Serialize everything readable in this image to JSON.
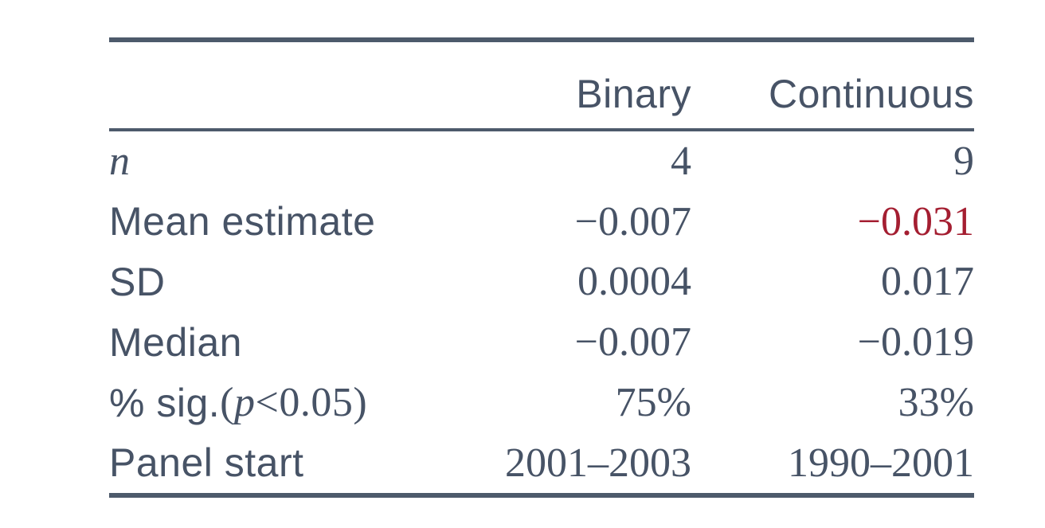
{
  "colors": {
    "text": "#475366",
    "rule": "#4d5a6b",
    "highlight": "#a41e31",
    "background": "#ffffff"
  },
  "table": {
    "header": {
      "label": "",
      "binary": "Binary",
      "continuous": "Continuous"
    },
    "rows": [
      {
        "label": "n",
        "binary": "4",
        "continuous": "9"
      },
      {
        "label": "Mean estimate",
        "binary": "−0.007",
        "continuous": "−0.031"
      },
      {
        "label": "SD",
        "binary": "0.0004",
        "continuous": "0.017"
      },
      {
        "label": "Median",
        "binary": "−0.007",
        "continuous": "−0.019"
      },
      {
        "label_pre": "% sig. ",
        "label_open": "(",
        "label_var": "p",
        "label_post": "<0.05)",
        "binary": "75%",
        "continuous": "33%"
      },
      {
        "label": "Panel start",
        "binary": "2001–2003",
        "continuous": "1990–2001"
      }
    ]
  }
}
